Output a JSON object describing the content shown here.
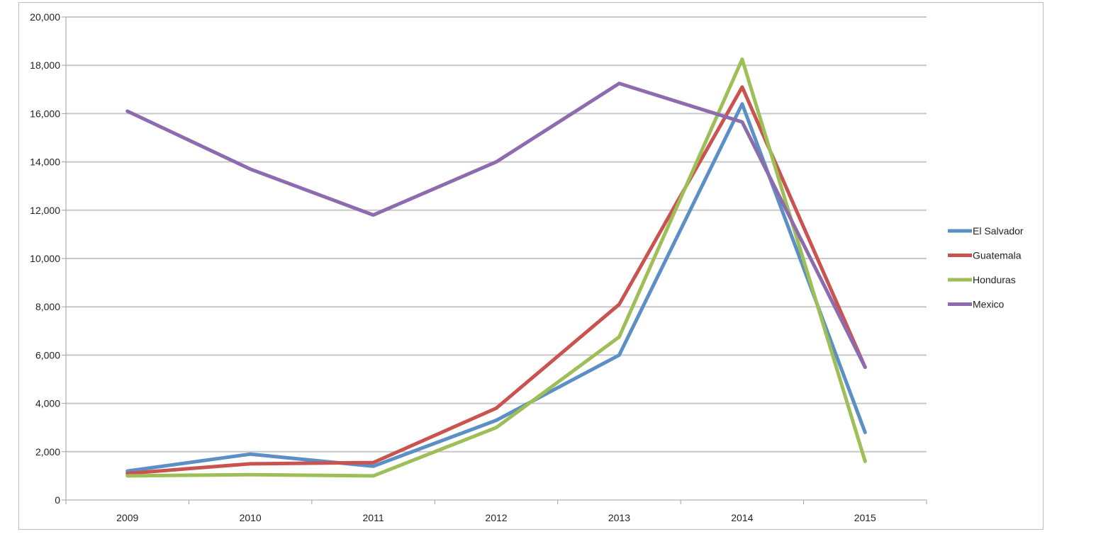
{
  "chart_data": {
    "type": "line",
    "title": "",
    "xlabel": "",
    "ylabel": "",
    "categories": [
      "2009",
      "2010",
      "2011",
      "2012",
      "2013",
      "2014",
      "2015"
    ],
    "ylim": [
      0,
      20000
    ],
    "yticks": [
      0,
      2000,
      4000,
      6000,
      8000,
      10000,
      12000,
      14000,
      16000,
      18000,
      20000
    ],
    "ytick_labels": [
      "0",
      "2,000",
      "4,000",
      "6,000",
      "8,000",
      "10,000",
      "12,000",
      "14,000",
      "16,000",
      "18,000",
      "20,000"
    ],
    "grid": true,
    "legend_position": "right",
    "series": [
      {
        "name": "El Salvador",
        "color": "#5b8fc5",
        "values": [
          1200,
          1900,
          1400,
          3300,
          6000,
          16400,
          2800
        ]
      },
      {
        "name": "Guatemala",
        "color": "#c9534f",
        "values": [
          1100,
          1500,
          1550,
          3800,
          8100,
          17100,
          5500
        ]
      },
      {
        "name": "Honduras",
        "color": "#9ebf57",
        "values": [
          1000,
          1050,
          1000,
          3000,
          6750,
          18250,
          1600
        ]
      },
      {
        "name": "Mexico",
        "color": "#8c6cae",
        "values": [
          16100,
          13700,
          11800,
          14000,
          17250,
          15650,
          5500
        ]
      }
    ]
  }
}
